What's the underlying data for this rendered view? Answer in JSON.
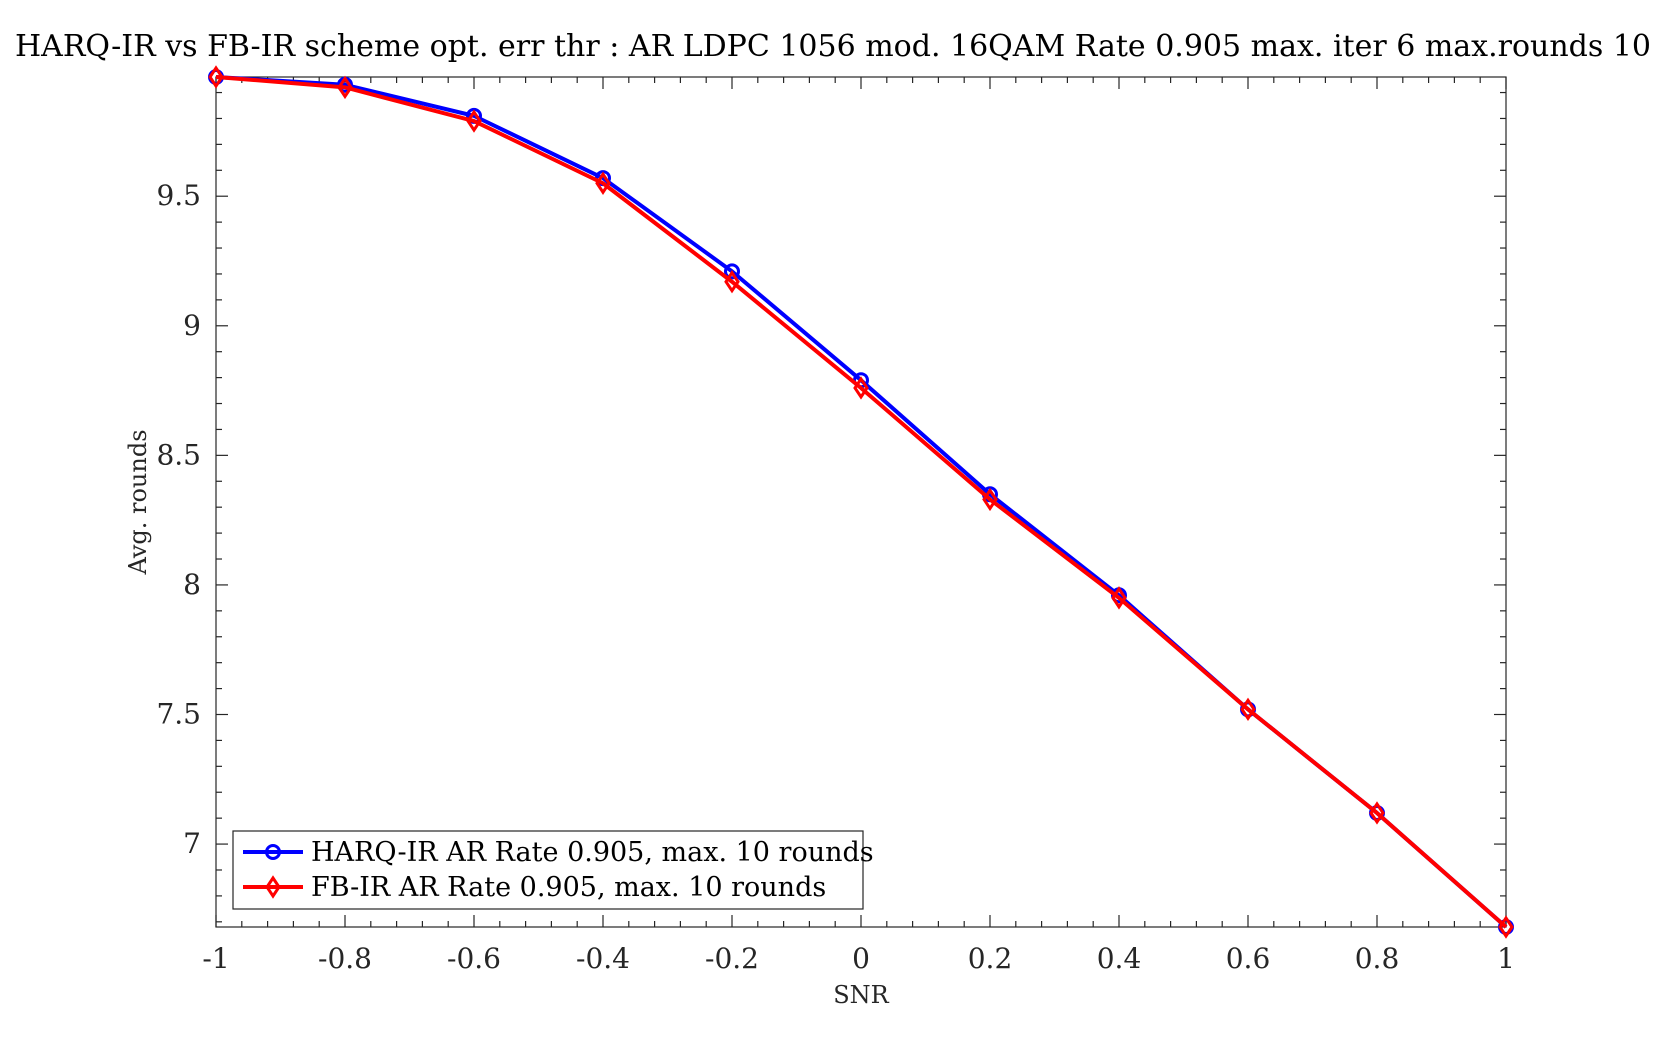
{
  "chart_data": {
    "type": "line",
    "title": "HARQ-IR vs FB-IR scheme opt. err thr : AR LDPC 1056 mod. 16QAM Rate 0.905 max. iter 6 max.rounds 10",
    "xlabel": "SNR",
    "ylabel": "Avg. rounds",
    "xlim": [
      -1,
      1
    ],
    "ylim": [
      6.68,
      9.96
    ],
    "xticks": [
      -1,
      -0.8,
      -0.6,
      -0.4,
      -0.2,
      0,
      0.2,
      0.4,
      0.6,
      0.8,
      1
    ],
    "xtick_labels": [
      "-1",
      "-0.8",
      "-0.6",
      "-0.4",
      "-0.2",
      "0",
      "0.2",
      "0.4",
      "0.6",
      "0.8",
      "1"
    ],
    "yticks": [
      7,
      7.5,
      8,
      8.5,
      9,
      9.5
    ],
    "ytick_labels": [
      "7",
      "7.5",
      "8",
      "8.5",
      "9",
      "9.5"
    ],
    "grid": false,
    "legend_position": "bottom-left",
    "x": [
      -1,
      -0.8,
      -0.6,
      -0.4,
      -0.2,
      0,
      0.2,
      0.4,
      0.6,
      0.8,
      1
    ],
    "series": [
      {
        "name": "HARQ-IR AR Rate 0.905, max. 10 rounds",
        "color": "#0000ff",
        "marker": "circle",
        "values": [
          9.96,
          9.93,
          9.81,
          9.57,
          9.21,
          8.79,
          8.35,
          7.96,
          7.52,
          7.12,
          6.68
        ]
      },
      {
        "name": "FB-IR AR Rate 0.905, max. 10 rounds",
        "color": "#ff0000",
        "marker": "diamond",
        "values": [
          9.96,
          9.92,
          9.79,
          9.55,
          9.17,
          8.76,
          8.33,
          7.95,
          7.52,
          7.12,
          6.68
        ]
      }
    ]
  }
}
